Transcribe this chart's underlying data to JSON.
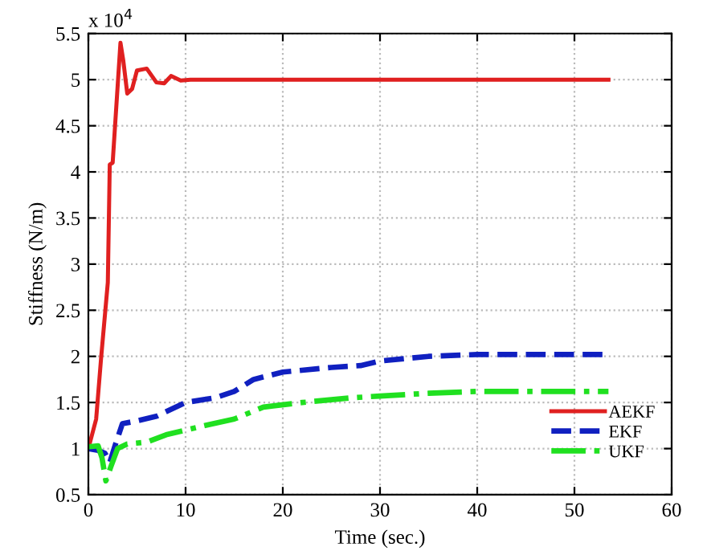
{
  "chart_data": {
    "type": "line",
    "xlabel": "Time (sec.)",
    "ylabel": "Stiffness (N/m)",
    "annotations": [
      "x 10$^{4}$"
    ],
    "xlim": [
      0,
      60
    ],
    "xticks": [
      0,
      10,
      20,
      30,
      40,
      50,
      60
    ],
    "ylim": [
      0.5,
      5.5
    ],
    "yticks": [
      0.5,
      1,
      1.5,
      2,
      2.5,
      3,
      3.5,
      4,
      4.5,
      5,
      5.5
    ],
    "grid": true,
    "legend": "bottom right",
    "marker": "none",
    "series": [
      {
        "name": "AEKF",
        "color": "#e02020",
        "line_style": "solid",
        "x": [
          0,
          0.8,
          1.3,
          2,
          2.2,
          2.5,
          3.3,
          3.6,
          4.0,
          4.5,
          5,
          6,
          7,
          7.8,
          8.5,
          9.5,
          10.5,
          53.5
        ],
        "values": [
          1.0,
          1.32,
          1.97,
          2.8,
          4.08,
          4.1,
          5.4,
          5.2,
          4.85,
          4.9,
          5.1,
          5.12,
          4.97,
          4.96,
          5.04,
          4.99,
          5.0,
          5.0
        ]
      },
      {
        "name": "EKF",
        "color": "#1020c0",
        "line_style": "dashed",
        "x": [
          0,
          1,
          1.7,
          2.2,
          2.8,
          3.5,
          5,
          7,
          10,
          13,
          15,
          17,
          20,
          25,
          28,
          30,
          35,
          40,
          53.5
        ],
        "values": [
          1.0,
          0.98,
          0.95,
          0.85,
          1.05,
          1.27,
          1.3,
          1.35,
          1.5,
          1.55,
          1.62,
          1.75,
          1.83,
          1.88,
          1.9,
          1.95,
          2.0,
          2.02,
          2.02
        ]
      },
      {
        "name": "UKF",
        "color": "#20e020",
        "line_style": "dashdot",
        "x": [
          0,
          1,
          1.4,
          1.8,
          2.3,
          3,
          4,
          6,
          8,
          12,
          15,
          18,
          22,
          27,
          30,
          35,
          40,
          53.5
        ],
        "values": [
          1.02,
          1.03,
          0.9,
          0.65,
          0.8,
          1.0,
          1.05,
          1.07,
          1.15,
          1.25,
          1.32,
          1.45,
          1.5,
          1.55,
          1.57,
          1.6,
          1.62,
          1.62
        ]
      }
    ]
  }
}
